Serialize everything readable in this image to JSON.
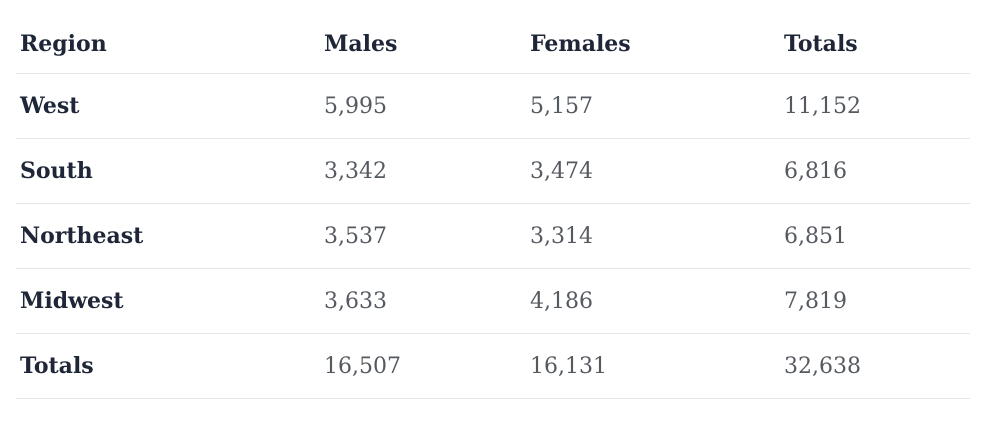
{
  "table": {
    "headers": [
      "Region",
      "Males",
      "Females",
      "Totals"
    ],
    "rows": [
      [
        "West",
        "5,995",
        "5,157",
        "11,152"
      ],
      [
        "South",
        "3,342",
        "3,474",
        "6,816"
      ],
      [
        "Northeast",
        "3,537",
        "3,314",
        "6,851"
      ],
      [
        "Midwest",
        "3,633",
        "4,186",
        "7,819"
      ],
      [
        "Totals",
        "16,507",
        "16,131",
        "32,638"
      ]
    ]
  }
}
